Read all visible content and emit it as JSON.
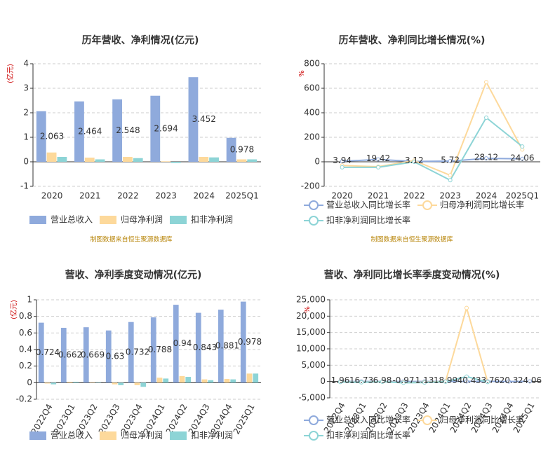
{
  "chart_data": [
    {
      "type": "bar",
      "title": "历年营收、净利情况(亿元)",
      "y_label": "(亿元)",
      "categories": [
        "2020",
        "2021",
        "2022",
        "2023",
        "2024",
        "2025Q1"
      ],
      "series": [
        {
          "name": "营业总收入",
          "color": "#8faadc",
          "values": [
            2.063,
            2.464,
            2.548,
            2.694,
            3.452,
            0.978
          ]
        },
        {
          "name": "归母净利润",
          "color": "#fdd99b",
          "values": [
            0.38,
            0.17,
            0.2,
            0.02,
            0.2,
            0.1
          ]
        },
        {
          "name": "扣非净利润",
          "color": "#8dd4d6",
          "values": [
            0.2,
            0.1,
            0.15,
            -0.05,
            0.18,
            0.1
          ]
        }
      ],
      "ylim": [
        -1,
        4
      ],
      "yticks": [
        -1,
        0,
        1,
        2,
        3,
        4
      ],
      "grid": true,
      "note": "制图数据来自恒生聚源数据库"
    },
    {
      "type": "line",
      "title": "历年营收、净利同比增长情况(%)",
      "y_label": "%",
      "categories": [
        "2020",
        "2021",
        "2022",
        "2023",
        "2024",
        "2025Q1"
      ],
      "series": [
        {
          "name": "营业总收入同比增长率",
          "color": "#8faadc",
          "values": [
            3.94,
            19.42,
            3.12,
            5.72,
            28.12,
            24.06
          ]
        },
        {
          "name": "归母净利润同比增长率",
          "color": "#fdd99b",
          "values": [
            -30,
            -40,
            10,
            -110,
            650,
            100
          ]
        },
        {
          "name": "扣非净利润同比增长率",
          "color": "#8dd4d6",
          "values": [
            -45,
            -45,
            0,
            -150,
            360,
            125
          ]
        }
      ],
      "ylim": [
        -200,
        800
      ],
      "yticks": [
        -200,
        0,
        200,
        400,
        600,
        800
      ],
      "grid": true,
      "note": "制图数据来自恒生聚源数据库"
    },
    {
      "type": "bar",
      "title": "营收、净利季度变动情况(亿元)",
      "y_label": "(亿元)",
      "categories": [
        "2022Q4",
        "2023Q1",
        "2023Q2",
        "2023Q3",
        "2023Q4",
        "2024Q1",
        "2024Q2",
        "2024Q3",
        "2024Q4",
        "2025Q1"
      ],
      "series": [
        {
          "name": "营业总收入",
          "color": "#8faadc",
          "values": [
            0.724,
            0.662,
            0.669,
            0.63,
            0.732,
            0.788,
            0.94,
            0.843,
            0.881,
            0.978
          ]
        },
        {
          "name": "归母净利润",
          "color": "#fdd99b",
          "values": [
            -0.01,
            0.01,
            0.005,
            -0.02,
            -0.03,
            0.06,
            0.08,
            0.04,
            0.045,
            0.11
          ]
        },
        {
          "name": "扣非净利润",
          "color": "#8dd4d6",
          "values": [
            -0.02,
            0.01,
            0.005,
            -0.03,
            -0.05,
            0.05,
            0.07,
            0.03,
            0.04,
            0.11
          ]
        }
      ],
      "ylim": [
        -0.2,
        1
      ],
      "yticks": [
        -0.2,
        0,
        0.2,
        0.4,
        0.6,
        0.8,
        1
      ],
      "grid": true
    },
    {
      "type": "line",
      "title": "营收、净利同比增长率季度变动情况(%)",
      "y_label": "%",
      "categories": [
        "2022Q4",
        "2023Q1",
        "2023Q2",
        "2023Q3",
        "2023Q4",
        "2024Q1",
        "2024Q2",
        "2024Q3",
        "2024Q4",
        "2025Q1"
      ],
      "series": [
        {
          "name": "营业总收入同比增长率",
          "color": "#8faadc",
          "values": [
            1.96,
            16.73,
            6.98,
            -0.97,
            1.13,
            18.99,
            40.4,
            33.76,
            20.3,
            24.06
          ]
        },
        {
          "name": "归母净利润同比增长率",
          "color": "#fdd99b",
          "values": [
            -100,
            -200,
            -50,
            -300,
            -200,
            0,
            22500,
            -100,
            null,
            null
          ]
        },
        {
          "name": "扣非净利润同比增长率",
          "color": "#8dd4d6",
          "values": [
            -150,
            -250,
            -80,
            -400,
            -300,
            -50,
            1500,
            -150,
            null,
            null
          ]
        }
      ],
      "ylim": [
        -5000,
        25000
      ],
      "yticks": [
        {
          "value": -5000,
          "label": "-5,000"
        },
        0,
        {
          "value": 5000,
          "label": "5,000"
        },
        {
          "value": 10000,
          "label": "10,000"
        },
        {
          "value": 15000,
          "label": "15,000"
        },
        {
          "value": 20000,
          "label": "20,000"
        },
        {
          "value": 25000,
          "label": "25,000"
        }
      ],
      "grid": true
    }
  ]
}
